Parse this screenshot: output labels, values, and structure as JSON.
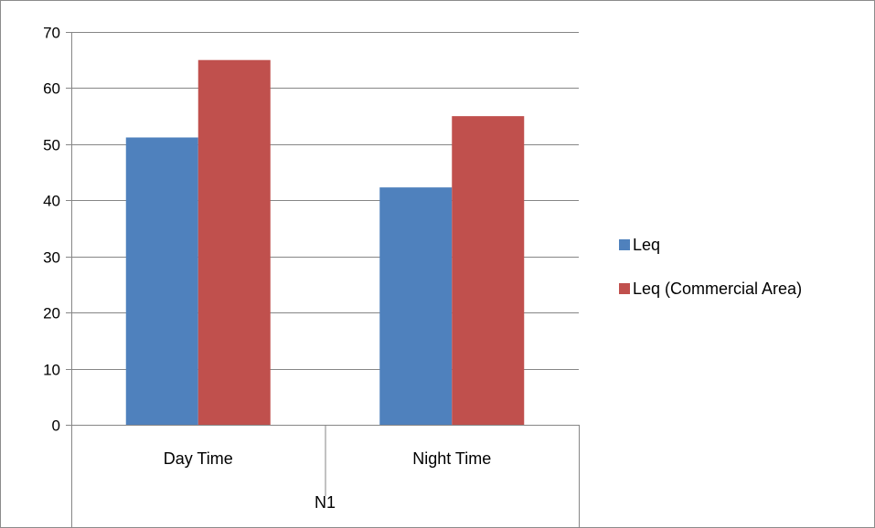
{
  "chart_data": {
    "type": "bar",
    "title": "",
    "xlabel": "",
    "ylabel": "",
    "ylim": [
      0,
      70
    ],
    "yticks": [
      0,
      10,
      20,
      30,
      40,
      50,
      60,
      70
    ],
    "grid": true,
    "legend_position": "right",
    "categories": [
      "Day Time",
      "Night Time"
    ],
    "group_label": "N1",
    "series": [
      {
        "name": "Leq",
        "color": "#4F81BD",
        "values": [
          51.2,
          42.3
        ]
      },
      {
        "name": "Leq (Commercial Area)",
        "color": "#C0504D",
        "values": [
          65,
          55
        ]
      }
    ]
  }
}
